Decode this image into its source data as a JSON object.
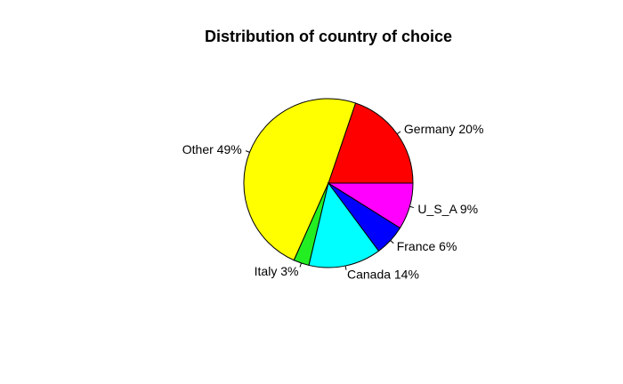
{
  "chart_data": {
    "type": "pie",
    "title": "Distribution of country of choice",
    "start_angle_deg": 0,
    "direction": "counterclockwise",
    "slices": [
      {
        "label": "Germany 20%",
        "value": 20,
        "color": "#ff0000"
      },
      {
        "label": "Other 49%",
        "value": 49,
        "color": "#ffff00"
      },
      {
        "label": "Italy 3%",
        "value": 3,
        "color": "#22ee22"
      },
      {
        "label": "Canada 14%",
        "value": 14,
        "color": "#00ffff"
      },
      {
        "label": "France 6%",
        "value": 6,
        "color": "#0000ff"
      },
      {
        "label": "U_S_A 9%",
        "value": 9,
        "color": "#ff00ff"
      }
    ]
  }
}
